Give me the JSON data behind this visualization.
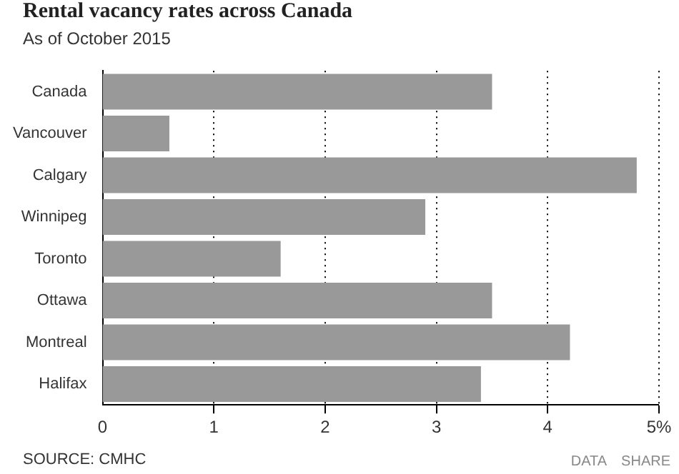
{
  "chart_data": {
    "type": "bar",
    "orientation": "horizontal",
    "title": "Rental vacancy rates across Canada",
    "subtitle": "As of October 2015",
    "categories": [
      "Canada",
      "Vancouver",
      "Calgary",
      "Winnipeg",
      "Toronto",
      "Ottawa",
      "Montreal",
      "Halifax"
    ],
    "values": [
      3.5,
      0.6,
      4.8,
      2.9,
      1.6,
      3.5,
      4.2,
      3.4
    ],
    "color": "#999999",
    "xlim": [
      0,
      5
    ],
    "xticks": [
      0,
      1,
      2,
      3,
      4,
      {
        "value": 5,
        "label": "5%"
      }
    ],
    "grid": "x",
    "legend": false,
    "annotations": [
      "SOURCE: CMHC",
      "DATA",
      "SHARE"
    ]
  }
}
